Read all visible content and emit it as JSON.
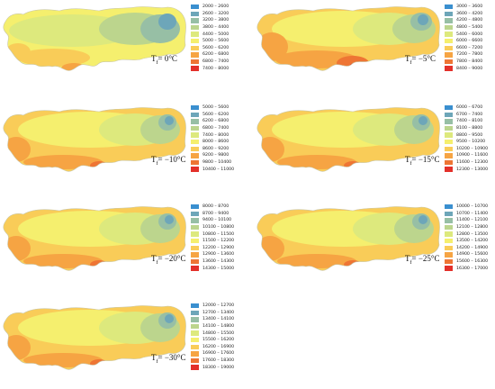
{
  "map_shape": "turkey-outline",
  "panels": [
    {
      "id": "tf0",
      "label": "Tf= 0°C",
      "label_main": "T",
      "label_sub": "f",
      "label_value": "= 0°C",
      "legend": [
        {
          "range": "2000 – 2600",
          "color": "#3a8fcf"
        },
        {
          "range": "2600 – 3200",
          "color": "#6da6b9"
        },
        {
          "range": "3200 – 3800",
          "color": "#97bfa5"
        },
        {
          "range": "3800 – 4400",
          "color": "#bcd58d"
        },
        {
          "range": "4400 – 5000",
          "color": "#dde97d"
        },
        {
          "range": "5000 – 5600",
          "color": "#f5ef6e"
        },
        {
          "range": "5600 – 6200",
          "color": "#f9cc58"
        },
        {
          "range": "6200 – 6800",
          "color": "#f6a443"
        },
        {
          "range": "6800 – 7400",
          "color": "#ee7534"
        },
        {
          "range": "7400 – 8000",
          "color": "#e3302a"
        }
      ]
    },
    {
      "id": "tf-5",
      "label": "Tf= −5°C",
      "label_main": "T",
      "label_sub": "f",
      "label_value": "= −5°C",
      "legend": [
        {
          "range": "3000 – 3600",
          "color": "#3a8fcf"
        },
        {
          "range": "3600 – 4200",
          "color": "#6da6b9"
        },
        {
          "range": "4200 – 4800",
          "color": "#97bfa5"
        },
        {
          "range": "4800 – 5400",
          "color": "#bcd58d"
        },
        {
          "range": "5400 – 6000",
          "color": "#dde97d"
        },
        {
          "range": "6000 – 6600",
          "color": "#f5ef6e"
        },
        {
          "range": "6600 – 7200",
          "color": "#f9cc58"
        },
        {
          "range": "7200 – 7800",
          "color": "#f6a443"
        },
        {
          "range": "7800 – 8400",
          "color": "#ee7534"
        },
        {
          "range": "8400 – 9000",
          "color": "#e3302a"
        }
      ]
    },
    {
      "id": "tf-10",
      "label": "Tf= −10°C",
      "label_main": "T",
      "label_sub": "f",
      "label_value": "= −10°C",
      "legend": [
        {
          "range": "5000 – 5600",
          "color": "#3a8fcf"
        },
        {
          "range": "5600 – 6200",
          "color": "#6da6b9"
        },
        {
          "range": "6200 – 6800",
          "color": "#97bfa5"
        },
        {
          "range": "6800 – 7400",
          "color": "#bcd58d"
        },
        {
          "range": "7400 – 8000",
          "color": "#dde97d"
        },
        {
          "range": "8000 – 8600",
          "color": "#f5ef6e"
        },
        {
          "range": "8600 – 9200",
          "color": "#f9cc58"
        },
        {
          "range": "9200 – 9800",
          "color": "#f6a443"
        },
        {
          "range": "9800 – 10400",
          "color": "#ee7534"
        },
        {
          "range": "10400 – 11000",
          "color": "#e3302a"
        }
      ]
    },
    {
      "id": "tf-15",
      "label": "Tf= −15°C",
      "label_main": "T",
      "label_sub": "f",
      "label_value": "= −15°C",
      "legend": [
        {
          "range": "6000 – 6700",
          "color": "#3a8fcf"
        },
        {
          "range": "6700 – 7400",
          "color": "#6da6b9"
        },
        {
          "range": "7400 – 8100",
          "color": "#97bfa5"
        },
        {
          "range": "8100 – 8800",
          "color": "#bcd58d"
        },
        {
          "range": "8800 – 9500",
          "color": "#dde97d"
        },
        {
          "range": "9500 – 10200",
          "color": "#f5ef6e"
        },
        {
          "range": "10200 – 10900",
          "color": "#f9cc58"
        },
        {
          "range": "10900 – 11600",
          "color": "#f6a443"
        },
        {
          "range": "11600 – 12300",
          "color": "#ee7534"
        },
        {
          "range": "12300 – 13000",
          "color": "#e3302a"
        }
      ]
    },
    {
      "id": "tf-20",
      "label": "Tf= −20°C",
      "label_main": "T",
      "label_sub": "f",
      "label_value": "= −20°C",
      "legend": [
        {
          "range": "8000 – 8700",
          "color": "#3a8fcf"
        },
        {
          "range": "8700 – 9400",
          "color": "#6da6b9"
        },
        {
          "range": "9400 – 10100",
          "color": "#97bfa5"
        },
        {
          "range": "10100 – 10800",
          "color": "#bcd58d"
        },
        {
          "range": "10800 – 11500",
          "color": "#dde97d"
        },
        {
          "range": "11500 – 12200",
          "color": "#f5ef6e"
        },
        {
          "range": "12200 – 12900",
          "color": "#f9cc58"
        },
        {
          "range": "12900 – 13600",
          "color": "#f6a443"
        },
        {
          "range": "13600 – 14300",
          "color": "#ee7534"
        },
        {
          "range": "14300 – 15000",
          "color": "#e3302a"
        }
      ]
    },
    {
      "id": "tf-25",
      "label": "Tf= −25°C",
      "label_main": "T",
      "label_sub": "f",
      "label_value": "= −25°C",
      "legend": [
        {
          "range": "10000 – 10700",
          "color": "#3a8fcf"
        },
        {
          "range": "10700 – 11400",
          "color": "#6da6b9"
        },
        {
          "range": "11400 – 12100",
          "color": "#97bfa5"
        },
        {
          "range": "12100 – 12800",
          "color": "#bcd58d"
        },
        {
          "range": "12800 – 13500",
          "color": "#dde97d"
        },
        {
          "range": "13500 – 14200",
          "color": "#f5ef6e"
        },
        {
          "range": "14200 – 14900",
          "color": "#f9cc58"
        },
        {
          "range": "14900 – 15600",
          "color": "#f6a443"
        },
        {
          "range": "15600 – 16300",
          "color": "#ee7534"
        },
        {
          "range": "16300 – 17000",
          "color": "#e3302a"
        }
      ]
    },
    {
      "id": "tf-30",
      "label": "Tf= −30°C",
      "label_main": "T",
      "label_sub": "f",
      "label_value": "= −30°C",
      "legend": [
        {
          "range": "12000 – 12700",
          "color": "#3a8fcf"
        },
        {
          "range": "12700 – 13400",
          "color": "#6da6b9"
        },
        {
          "range": "13400 – 14100",
          "color": "#97bfa5"
        },
        {
          "range": "14100 – 14800",
          "color": "#bcd58d"
        },
        {
          "range": "14800 – 15500",
          "color": "#dde97d"
        },
        {
          "range": "15500 – 16200",
          "color": "#f5ef6e"
        },
        {
          "range": "16200 – 16900",
          "color": "#f9cc58"
        },
        {
          "range": "16900 – 17600",
          "color": "#f6a443"
        },
        {
          "range": "17600 – 18300",
          "color": "#ee7534"
        },
        {
          "range": "18300 – 19000",
          "color": "#e3302a"
        }
      ]
    }
  ]
}
